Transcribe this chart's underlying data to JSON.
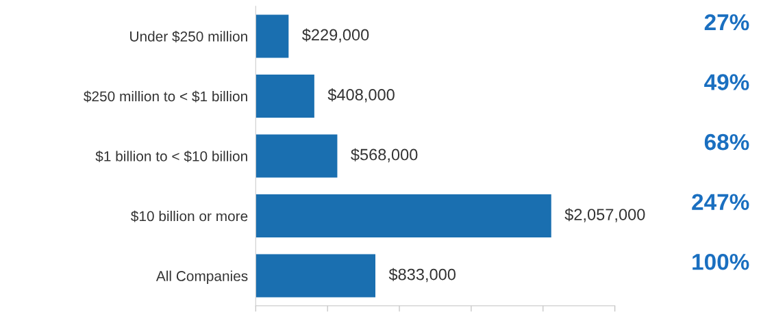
{
  "chart_data": {
    "type": "bar",
    "orientation": "horizontal",
    "categories": [
      "Under $250 million",
      "$250 million to < $1 billion",
      "$1 billion to < $10 billion",
      "$10 billion or more",
      "All Companies"
    ],
    "values": [
      229000,
      408000,
      568000,
      2057000,
      833000
    ],
    "value_labels": [
      "$229,000",
      "$408,000",
      "$568,000",
      "$2,057,000",
      "$833,000"
    ],
    "color": "#1a6fb0",
    "xlim": [
      0,
      2500000
    ],
    "xticks": [
      {
        "value": 0,
        "label": null
      },
      {
        "value": 500000,
        "label": null
      },
      {
        "value": 1000000,
        "label": null
      },
      {
        "value": 1500000,
        "label": null
      },
      {
        "value": 2000000,
        "label": null
      },
      {
        "value": 2500000,
        "label": null
      }
    ],
    "tick_labels": "y",
    "grid": false,
    "legend": false,
    "annotations": [
      "27%",
      "49%",
      "68%",
      "247%",
      "100%"
    ]
  }
}
